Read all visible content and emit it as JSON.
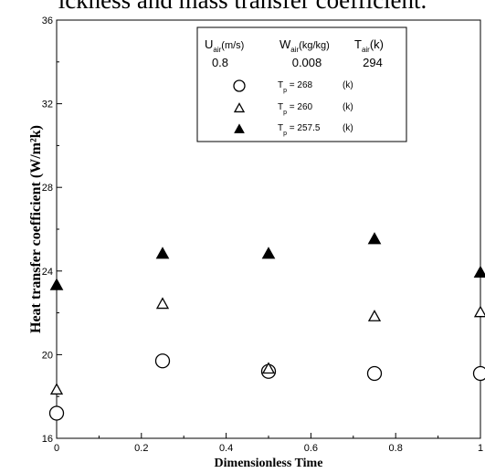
{
  "caption": "ickness and mass transfer coefficient.",
  "chart_data": {
    "type": "scatter",
    "title": "",
    "xlabel": "Dimensionless Time",
    "ylabel": "Heat transfer coefficient  (W/m²k)",
    "xlim": [
      0,
      1
    ],
    "ylim": [
      16,
      36
    ],
    "xticks": [
      0,
      0.2,
      0.4,
      0.6,
      0.8,
      1
    ],
    "xtick_labels": [
      "0",
      "0.2",
      "0.4",
      "0.6",
      "0.8",
      "1"
    ],
    "yticks": [
      16,
      20,
      24,
      28,
      32,
      36
    ],
    "ytick_labels": [
      "16",
      "20",
      "24",
      "28",
      "32",
      "36"
    ],
    "grid": false,
    "legend_position": "top-right",
    "series": [
      {
        "name": "T_p = 268  (k)",
        "marker": "circle-open",
        "x": [
          0,
          0.25,
          0.5,
          0.75,
          1
        ],
        "y": [
          17.2,
          19.7,
          19.2,
          19.1,
          19.1
        ]
      },
      {
        "name": "T_p = 260  (k)",
        "marker": "triangle-open",
        "x": [
          0,
          0.25,
          0.5,
          0.75,
          1
        ],
        "y": [
          18.3,
          22.4,
          19.3,
          21.8,
          22.0
        ]
      },
      {
        "name": "T_p = 257.5  (k)",
        "marker": "triangle-filled",
        "x": [
          0,
          0.25,
          0.5,
          0.75,
          1
        ],
        "y": [
          23.3,
          24.8,
          24.8,
          25.5,
          23.9
        ]
      }
    ],
    "legend": {
      "headers": [
        {
          "main": "U",
          "sub": "air",
          "rest": "(m/s)"
        },
        {
          "main": "W",
          "sub": "air",
          "rest": "(kg/kg)"
        },
        {
          "main": "T",
          "sub": "air",
          "rest": "(k)"
        }
      ],
      "values": [
        "0.8",
        "0.008",
        "294"
      ],
      "entries": [
        {
          "main": "T",
          "sub": "p",
          "value": "= 268",
          "unit": "(k)"
        },
        {
          "main": "T",
          "sub": "p",
          "value": "= 260",
          "unit": "(k)"
        },
        {
          "main": "T",
          "sub": "p",
          "value": "= 257.5",
          "unit": "(k)"
        }
      ]
    }
  }
}
